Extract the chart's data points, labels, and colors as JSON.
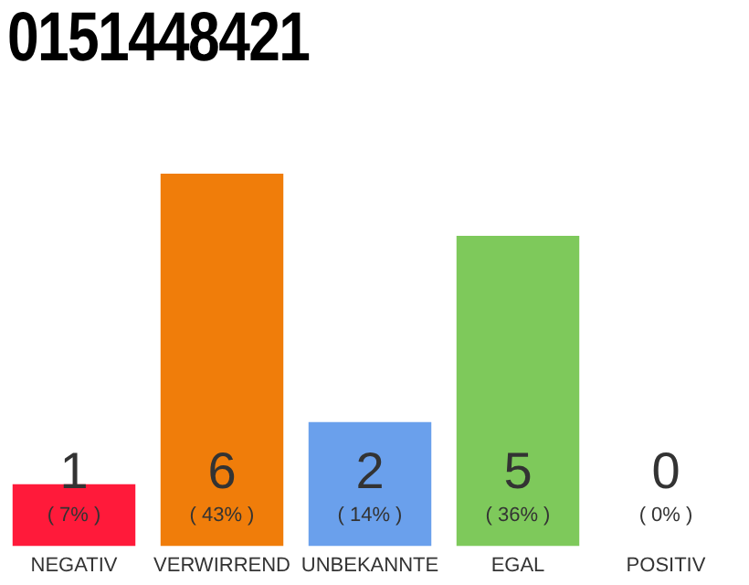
{
  "chart_data": {
    "type": "bar",
    "title": "0151448421",
    "categories": [
      "NEGATIV",
      "VERWIRREND",
      "UNBEKANNTE",
      "EGAL",
      "POSITIV"
    ],
    "values": [
      1,
      6,
      2,
      5,
      0
    ],
    "colors": [
      "#ff1a3a",
      "#f07d0a",
      "#6aa0ec",
      "#7ec95b",
      "#cccccc"
    ],
    "data_labels": true,
    "annotations": [
      "( 7% )",
      "( 43% )",
      "( 14% )",
      "( 36% )",
      "( 0% )"
    ],
    "grid": false,
    "legend": false
  }
}
